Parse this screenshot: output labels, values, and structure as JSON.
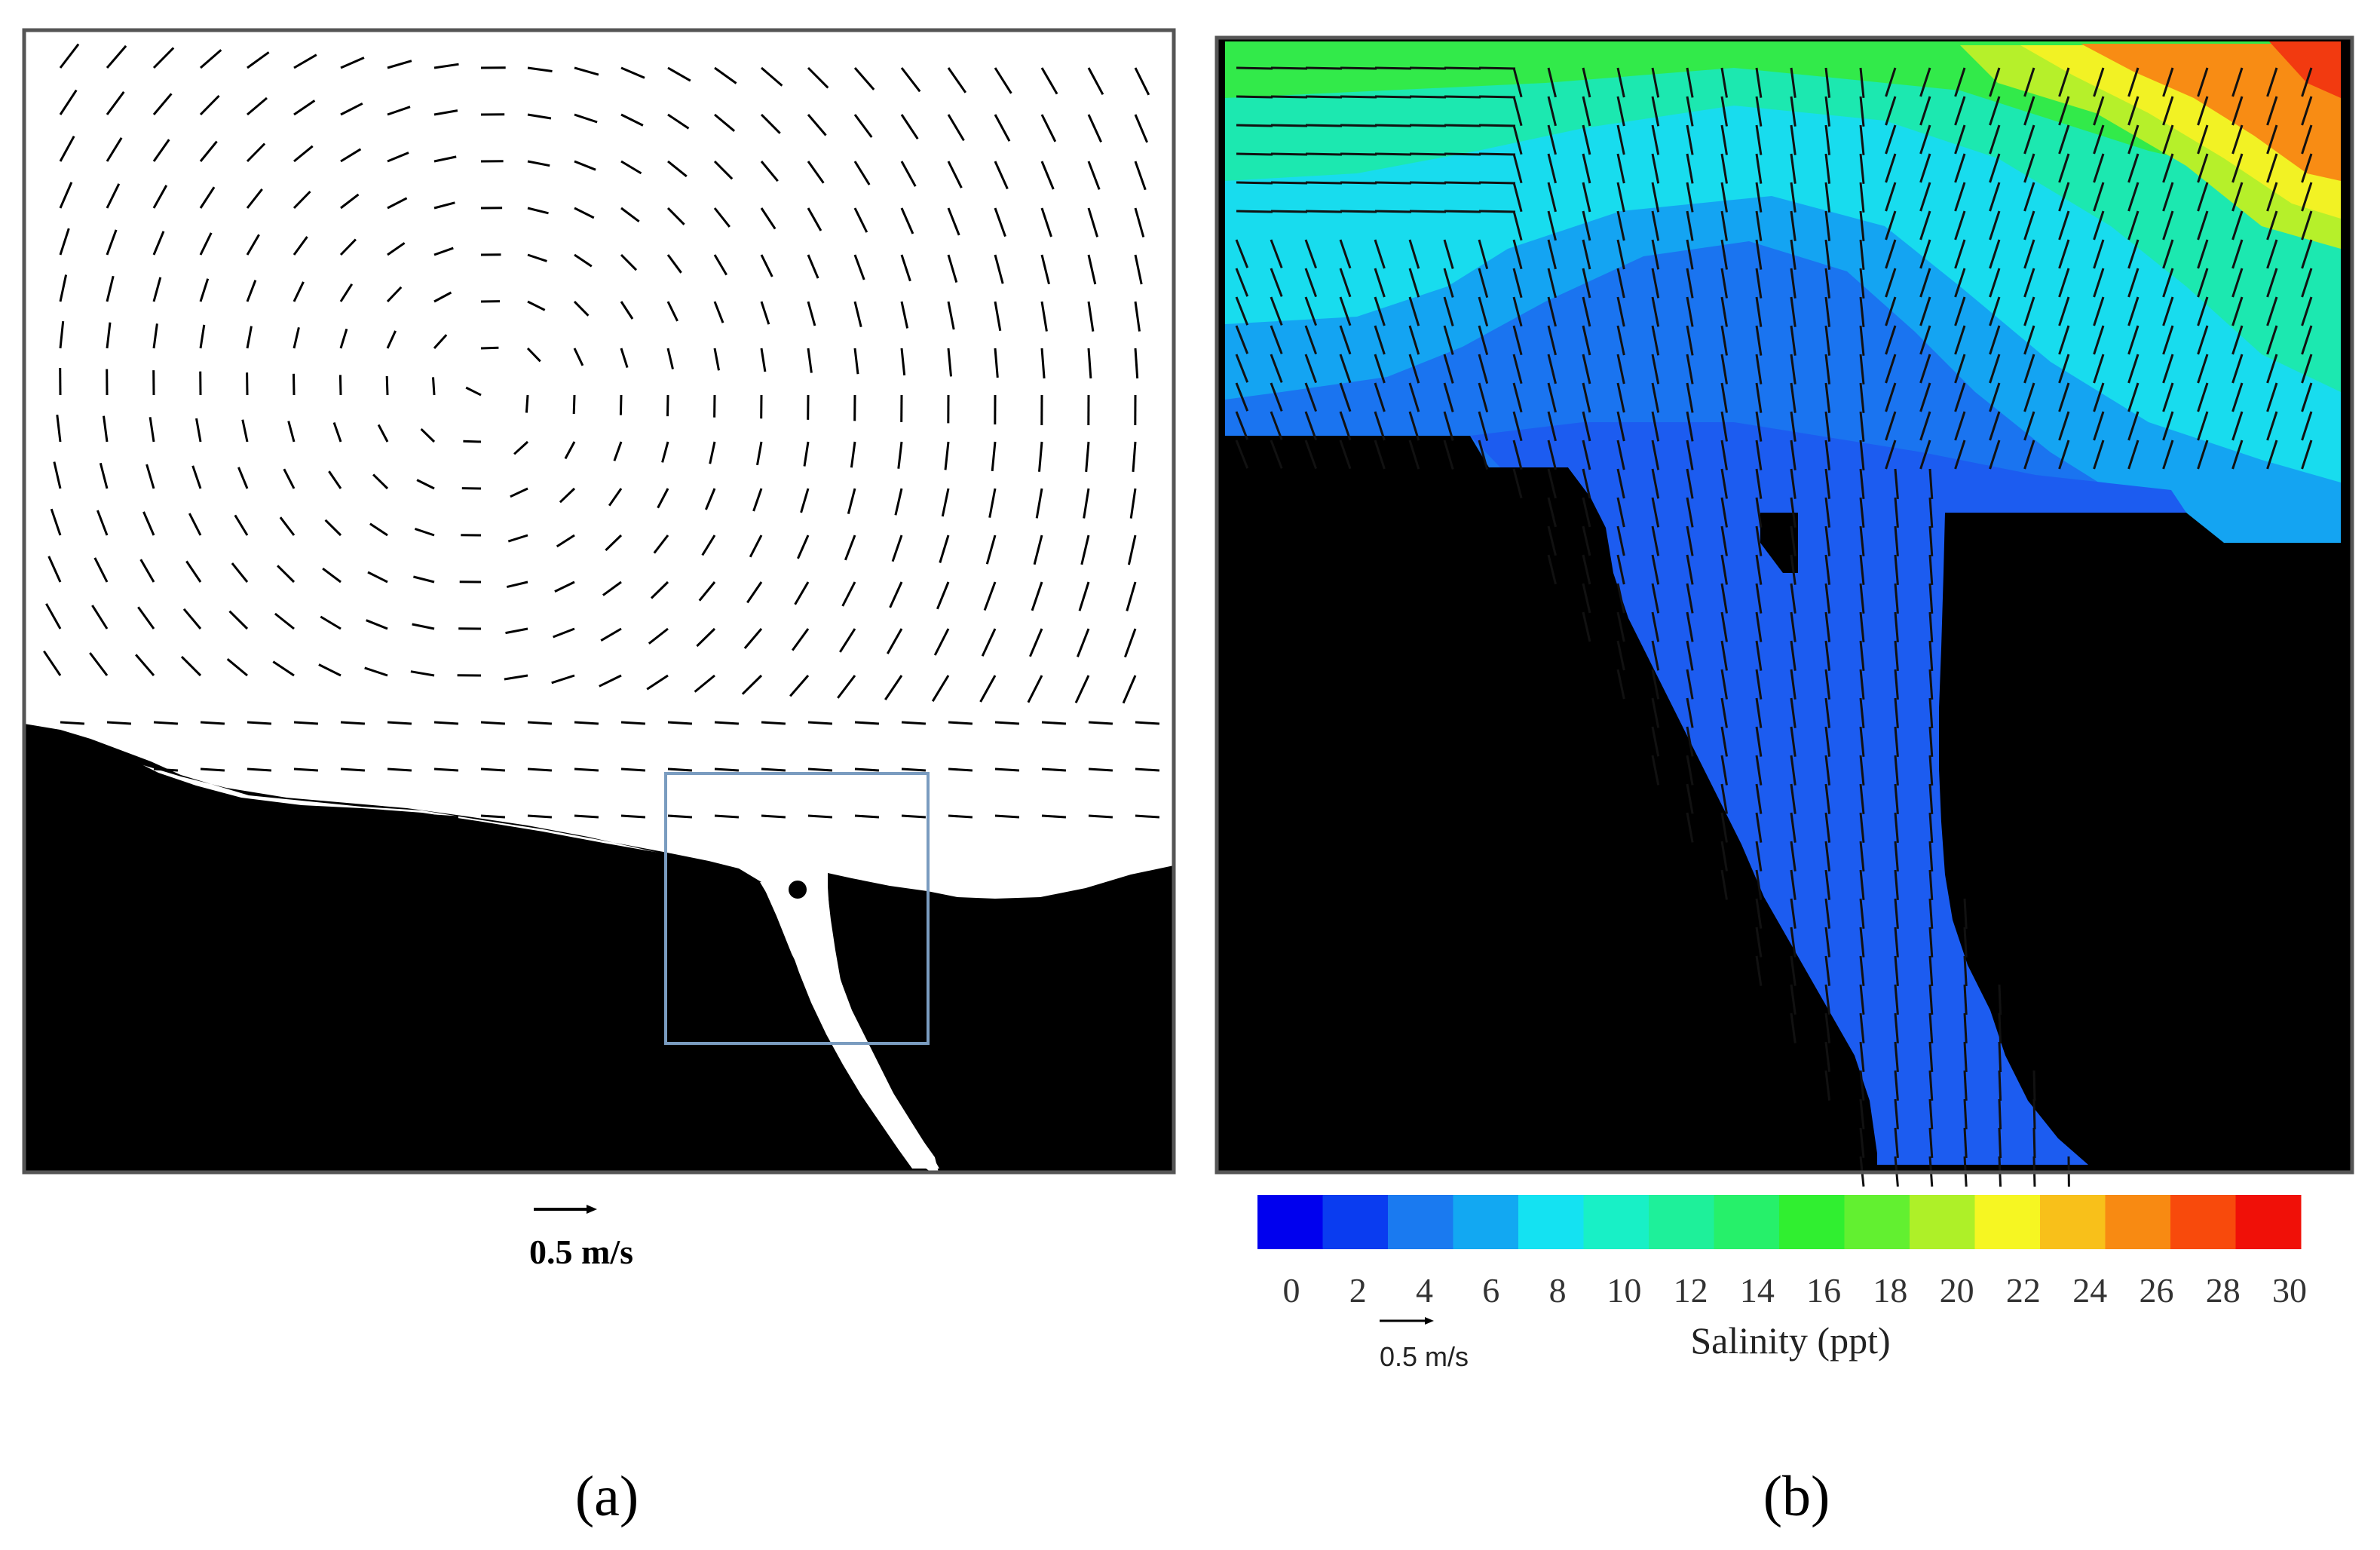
{
  "panels": {
    "a": {
      "label": "(a)",
      "scale_label": "0.5 m/s"
    },
    "b": {
      "label": "(b)",
      "scale_label": "0.5 m/s"
    }
  },
  "colorbar": {
    "title": "Salinity (ppt)",
    "ticks": [
      "0",
      "2",
      "4",
      "6",
      "8",
      "10",
      "12",
      "14",
      "16",
      "18",
      "20",
      "22",
      "24",
      "26",
      "28",
      "30"
    ],
    "colors": [
      "#0000ee",
      "#0a3cf0",
      "#1a7af0",
      "#12a8f2",
      "#14e2f2",
      "#18f0c6",
      "#1ef09a",
      "#26f06a",
      "#30ef30",
      "#62f030",
      "#aef028",
      "#f6f622",
      "#f8c01a",
      "#f88a12",
      "#f84a0c",
      "#f01008"
    ]
  },
  "colors": {
    "land": "#000000",
    "water_a": "#ffffff",
    "box": "#7a9cc0",
    "channel_b": "#1c5cf0"
  }
}
